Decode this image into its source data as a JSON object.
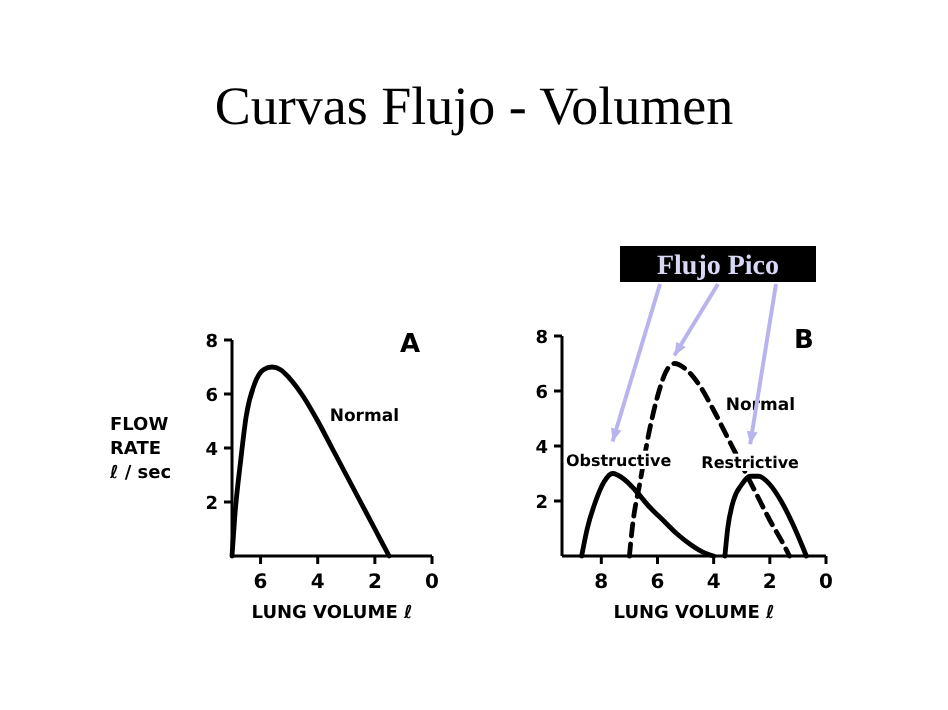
{
  "chart_data": [
    {
      "type": "line",
      "title": "Curvas Flujo - Volumen",
      "annotations": [
        "A"
      ],
      "xlabel": "LUNG VOLUME ℓ",
      "ylabel": "FLOW\nRATE\nℓ / sec",
      "xlim": [
        7,
        0
      ],
      "xticks": [
        6,
        4,
        2,
        0
      ],
      "ylim": [
        0,
        8
      ],
      "yticks": [
        2,
        4,
        6,
        8
      ],
      "grid": false,
      "marker": "none",
      "series": [
        {
          "name": "Normal",
          "color": "#000000",
          "line_style": "solid",
          "x": [
            7,
            6.9,
            6.7,
            6.5,
            6.2,
            5.9,
            5.6,
            5.3,
            5,
            4.5,
            4,
            3.5,
            3,
            2.5,
            2,
            1.5
          ],
          "values": [
            0,
            1.5,
            3.5,
            5.2,
            6.4,
            6.9,
            7,
            6.9,
            6.6,
            5.9,
            5.0,
            4.0,
            3.0,
            2.0,
            1.0,
            0
          ]
        }
      ]
    },
    {
      "type": "line",
      "annotations": [
        "B",
        {
          "text": "Flujo Pico",
          "x": 5.4,
          "y": 7
        }
      ],
      "xlabel": "LUNG VOLUME ℓ",
      "xlim": [
        9.4,
        0
      ],
      "xticks": [
        8,
        6,
        4,
        2,
        0
      ],
      "ylim": [
        0,
        8
      ],
      "yticks": [
        2,
        4,
        6,
        8
      ],
      "grid": false,
      "marker": "none",
      "series": [
        {
          "name": "Obstructive",
          "color": "#000000",
          "line_style": "solid",
          "x": [
            8.7,
            8.5,
            8.2,
            7.9,
            7.6,
            7.2,
            6.8,
            6.3,
            5.8,
            5.3,
            4.8,
            4.3,
            4
          ],
          "values": [
            0,
            1,
            2,
            2.7,
            3,
            2.8,
            2.4,
            1.8,
            1.3,
            0.8,
            0.4,
            0.1,
            0
          ]
        },
        {
          "name": "Normal",
          "color": "#000000",
          "line_style": "dashed",
          "x": [
            7,
            6.9,
            6.6,
            6.3,
            6,
            5.7,
            5.4,
            5,
            4.5,
            4,
            3.5,
            3,
            2.5,
            2,
            1.5,
            1.3
          ],
          "values": [
            0,
            1,
            2.8,
            4.5,
            5.8,
            6.7,
            7,
            6.8,
            6.2,
            5.3,
            4.3,
            3.3,
            2.3,
            1.3,
            0.4,
            0
          ]
        },
        {
          "name": "Restrictive",
          "color": "#000000",
          "line_style": "solid",
          "x": [
            3.6,
            3.5,
            3.3,
            3,
            2.7,
            2.4,
            2,
            1.6,
            1.2,
            0.9,
            0.7
          ],
          "values": [
            0,
            1,
            2,
            2.6,
            2.9,
            2.9,
            2.6,
            2,
            1.2,
            0.5,
            0
          ]
        }
      ]
    }
  ]
}
